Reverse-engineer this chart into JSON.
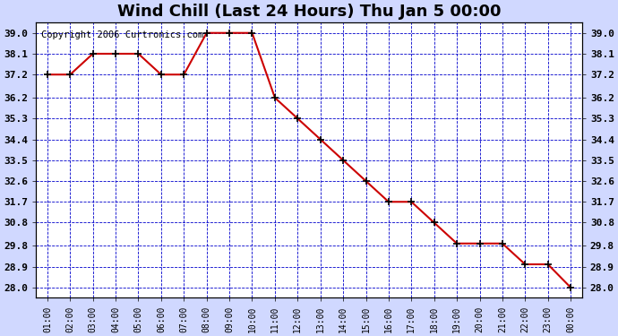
{
  "title": "Wind Chill (Last 24 Hours) Thu Jan 5 00:00",
  "copyright": "Copyright 2006 Curtronics.com",
  "x_labels": [
    "01:00",
    "02:00",
    "03:00",
    "04:00",
    "05:00",
    "06:00",
    "07:00",
    "08:00",
    "09:00",
    "10:00",
    "11:00",
    "12:00",
    "13:00",
    "14:00",
    "15:00",
    "16:00",
    "17:00",
    "18:00",
    "19:00",
    "20:00",
    "21:00",
    "22:00",
    "23:00",
    "00:00"
  ],
  "y_values": [
    37.2,
    37.2,
    38.1,
    38.1,
    38.1,
    37.2,
    37.2,
    39.0,
    39.0,
    39.0,
    36.2,
    35.3,
    34.4,
    33.5,
    32.6,
    31.7,
    31.7,
    30.8,
    29.9,
    29.9,
    29.9,
    29.0,
    29.0,
    28.0
  ],
  "ylim_min": 27.55,
  "ylim_max": 39.45,
  "yticks": [
    28.0,
    28.9,
    29.8,
    30.8,
    31.7,
    32.6,
    33.5,
    34.4,
    35.3,
    36.2,
    37.2,
    38.1,
    39.0
  ],
  "ytick_labels": [
    "28.0",
    "28.9",
    "29.8",
    "30.8",
    "31.7",
    "32.6",
    "33.5",
    "34.4",
    "35.3",
    "36.2",
    "37.2",
    "38.1",
    "39.0"
  ],
  "line_color": "#cc0000",
  "marker_color": "#000000",
  "bg_color": "#d0d8ff",
  "plot_bg_color": "#ffffff",
  "grid_color": "#0000cc",
  "title_color": "#000000",
  "title_fontsize": 13,
  "copyright_fontsize": 7.5
}
